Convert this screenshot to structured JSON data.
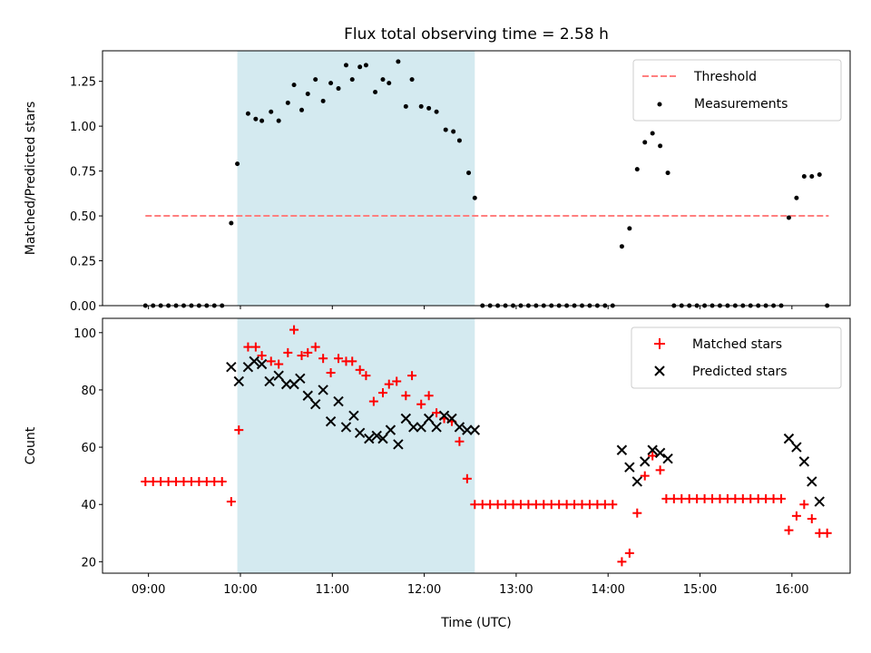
{
  "chart_data": {
    "type": "scatter",
    "title": "Flux total observing time = 2.58 h",
    "xlabel": "Time (UTC)",
    "x_ticks": [
      "09:00",
      "10:00",
      "11:00",
      "12:00",
      "13:00",
      "14:00",
      "15:00",
      "16:00"
    ],
    "colors": {
      "span": "#d4eaf0",
      "threshold": "#ff7f7f",
      "measurements": "#000000",
      "matched": "#ff0000",
      "predicted": "#000000"
    },
    "panels": [
      {
        "ylabel": "Matched/Predicted stars",
        "ylim": [
          0,
          1.42
        ],
        "y_ticks": [
          "0.00",
          "0.25",
          "0.50",
          "0.75",
          "1.00",
          "1.25"
        ],
        "legend": {
          "placement": "top-right",
          "entries": [
            "Threshold",
            "Measurements"
          ]
        },
        "shaded_span": [
          "09:58",
          "12:33"
        ],
        "threshold": {
          "name": "Threshold",
          "y": 0.5,
          "x_range": [
            "08:58",
            "16:24"
          ]
        },
        "series": [
          {
            "name": "Measurements",
            "marker": "dot",
            "points": [
              [
                "08:58",
                0
              ],
              [
                "09:03",
                0
              ],
              [
                "09:08",
                0
              ],
              [
                "09:13",
                0
              ],
              [
                "09:18",
                0
              ],
              [
                "09:23",
                0
              ],
              [
                "09:28",
                0
              ],
              [
                "09:33",
                0
              ],
              [
                "09:38",
                0
              ],
              [
                "09:43",
                0
              ],
              [
                "09:48",
                0
              ],
              [
                "09:54",
                0.46
              ],
              [
                "09:58",
                0.79
              ],
              [
                "10:05",
                1.07
              ],
              [
                "10:10",
                1.04
              ],
              [
                "10:14",
                1.03
              ],
              [
                "10:20",
                1.08
              ],
              [
                "10:25",
                1.03
              ],
              [
                "10:31",
                1.13
              ],
              [
                "10:35",
                1.23
              ],
              [
                "10:40",
                1.09
              ],
              [
                "10:44",
                1.18
              ],
              [
                "10:49",
                1.26
              ],
              [
                "10:54",
                1.14
              ],
              [
                "10:59",
                1.24
              ],
              [
                "11:04",
                1.21
              ],
              [
                "11:09",
                1.34
              ],
              [
                "11:13",
                1.26
              ],
              [
                "11:18",
                1.33
              ],
              [
                "11:22",
                1.34
              ],
              [
                "11:28",
                1.19
              ],
              [
                "11:33",
                1.26
              ],
              [
                "11:37",
                1.24
              ],
              [
                "11:43",
                1.36
              ],
              [
                "11:48",
                1.11
              ],
              [
                "11:52",
                1.26
              ],
              [
                "11:58",
                1.11
              ],
              [
                "12:03",
                1.1
              ],
              [
                "12:08",
                1.08
              ],
              [
                "12:14",
                0.98
              ],
              [
                "12:19",
                0.97
              ],
              [
                "12:23",
                0.92
              ],
              [
                "12:29",
                0.74
              ],
              [
                "12:33",
                0.6
              ],
              [
                "12:38",
                0
              ],
              [
                "12:43",
                0
              ],
              [
                "12:48",
                0
              ],
              [
                "12:53",
                0
              ],
              [
                "12:58",
                0
              ],
              [
                "13:03",
                0
              ],
              [
                "13:08",
                0
              ],
              [
                "13:13",
                0
              ],
              [
                "13:18",
                0
              ],
              [
                "13:23",
                0
              ],
              [
                "13:28",
                0
              ],
              [
                "13:33",
                0
              ],
              [
                "13:38",
                0
              ],
              [
                "13:43",
                0
              ],
              [
                "13:48",
                0
              ],
              [
                "13:53",
                0
              ],
              [
                "13:58",
                0
              ],
              [
                "14:03",
                0
              ],
              [
                "14:09",
                0.33
              ],
              [
                "14:14",
                0.43
              ],
              [
                "14:19",
                0.76
              ],
              [
                "14:24",
                0.91
              ],
              [
                "14:29",
                0.96
              ],
              [
                "14:34",
                0.89
              ],
              [
                "14:39",
                0.74
              ],
              [
                "14:43",
                0
              ],
              [
                "14:48",
                0
              ],
              [
                "14:53",
                0
              ],
              [
                "14:58",
                0
              ],
              [
                "15:03",
                0
              ],
              [
                "15:08",
                0
              ],
              [
                "15:13",
                0
              ],
              [
                "15:18",
                0
              ],
              [
                "15:23",
                0
              ],
              [
                "15:28",
                0
              ],
              [
                "15:33",
                0
              ],
              [
                "15:38",
                0
              ],
              [
                "15:43",
                0
              ],
              [
                "15:48",
                0
              ],
              [
                "15:53",
                0
              ],
              [
                "15:58",
                0.49
              ],
              [
                "16:03",
                0.6
              ],
              [
                "16:08",
                0.72
              ],
              [
                "16:13",
                0.72
              ],
              [
                "16:18",
                0.73
              ],
              [
                "16:23",
                0
              ]
            ]
          }
        ]
      },
      {
        "ylabel": "Count",
        "ylim": [
          16,
          105
        ],
        "y_ticks": [
          "20",
          "40",
          "60",
          "80",
          "100"
        ],
        "legend": {
          "placement": "top-right",
          "entries": [
            "Matched stars",
            "Predicted stars"
          ]
        },
        "shaded_span": [
          "09:58",
          "12:33"
        ],
        "series": [
          {
            "name": "Matched stars",
            "marker": "plus",
            "points": [
              [
                "08:58",
                48
              ],
              [
                "09:03",
                48
              ],
              [
                "09:08",
                48
              ],
              [
                "09:13",
                48
              ],
              [
                "09:18",
                48
              ],
              [
                "09:23",
                48
              ],
              [
                "09:28",
                48
              ],
              [
                "09:33",
                48
              ],
              [
                "09:38",
                48
              ],
              [
                "09:43",
                48
              ],
              [
                "09:48",
                48
              ],
              [
                "09:54",
                41
              ],
              [
                "09:59",
                66
              ],
              [
                "10:05",
                95
              ],
              [
                "10:10",
                95
              ],
              [
                "10:14",
                92
              ],
              [
                "10:20",
                90
              ],
              [
                "10:25",
                89
              ],
              [
                "10:31",
                93
              ],
              [
                "10:35",
                101
              ],
              [
                "10:40",
                92
              ],
              [
                "10:44",
                93
              ],
              [
                "10:49",
                95
              ],
              [
                "10:54",
                91
              ],
              [
                "10:59",
                86
              ],
              [
                "11:04",
                91
              ],
              [
                "11:09",
                90
              ],
              [
                "11:13",
                90
              ],
              [
                "11:18",
                87
              ],
              [
                "11:22",
                85
              ],
              [
                "11:27",
                76
              ],
              [
                "11:33",
                79
              ],
              [
                "11:37",
                82
              ],
              [
                "11:42",
                83
              ],
              [
                "11:48",
                78
              ],
              [
                "11:52",
                85
              ],
              [
                "11:58",
                75
              ],
              [
                "12:03",
                78
              ],
              [
                "12:08",
                72
              ],
              [
                "12:13",
                70
              ],
              [
                "12:18",
                69
              ],
              [
                "12:23",
                62
              ],
              [
                "12:28",
                49
              ],
              [
                "12:33",
                40
              ],
              [
                "12:38",
                40
              ],
              [
                "12:43",
                40
              ],
              [
                "12:48",
                40
              ],
              [
                "12:53",
                40
              ],
              [
                "12:58",
                40
              ],
              [
                "13:03",
                40
              ],
              [
                "13:08",
                40
              ],
              [
                "13:13",
                40
              ],
              [
                "13:18",
                40
              ],
              [
                "13:23",
                40
              ],
              [
                "13:28",
                40
              ],
              [
                "13:33",
                40
              ],
              [
                "13:38",
                40
              ],
              [
                "13:43",
                40
              ],
              [
                "13:48",
                40
              ],
              [
                "13:53",
                40
              ],
              [
                "13:58",
                40
              ],
              [
                "14:03",
                40
              ],
              [
                "14:09",
                20
              ],
              [
                "14:14",
                23
              ],
              [
                "14:19",
                37
              ],
              [
                "14:24",
                50
              ],
              [
                "14:29",
                57
              ],
              [
                "14:34",
                52
              ],
              [
                "14:38",
                42
              ],
              [
                "14:43",
                42
              ],
              [
                "14:48",
                42
              ],
              [
                "14:53",
                42
              ],
              [
                "14:58",
                42
              ],
              [
                "15:03",
                42
              ],
              [
                "15:08",
                42
              ],
              [
                "15:13",
                42
              ],
              [
                "15:18",
                42
              ],
              [
                "15:23",
                42
              ],
              [
                "15:28",
                42
              ],
              [
                "15:33",
                42
              ],
              [
                "15:38",
                42
              ],
              [
                "15:43",
                42
              ],
              [
                "15:48",
                42
              ],
              [
                "15:53",
                42
              ],
              [
                "15:58",
                31
              ],
              [
                "16:03",
                36
              ],
              [
                "16:08",
                40
              ],
              [
                "16:13",
                35
              ],
              [
                "16:18",
                30
              ],
              [
                "16:23",
                30
              ]
            ]
          },
          {
            "name": "Predicted stars",
            "marker": "x",
            "points": [
              [
                "09:54",
                88
              ],
              [
                "09:59",
                83
              ],
              [
                "10:05",
                88
              ],
              [
                "10:09",
                90
              ],
              [
                "10:14",
                89
              ],
              [
                "10:19",
                83
              ],
              [
                "10:25",
                85
              ],
              [
                "10:30",
                82
              ],
              [
                "10:35",
                82
              ],
              [
                "10:39",
                84
              ],
              [
                "10:44",
                78
              ],
              [
                "10:49",
                75
              ],
              [
                "10:54",
                80
              ],
              [
                "10:59",
                69
              ],
              [
                "11:04",
                76
              ],
              [
                "11:09",
                67
              ],
              [
                "11:14",
                71
              ],
              [
                "11:18",
                65
              ],
              [
                "11:24",
                63
              ],
              [
                "11:29",
                64
              ],
              [
                "11:33",
                63
              ],
              [
                "11:38",
                66
              ],
              [
                "11:43",
                61
              ],
              [
                "11:48",
                70
              ],
              [
                "11:53",
                67
              ],
              [
                "11:58",
                67
              ],
              [
                "12:03",
                70
              ],
              [
                "12:08",
                67
              ],
              [
                "12:13",
                71
              ],
              [
                "12:18",
                70
              ],
              [
                "12:23",
                67
              ],
              [
                "12:28",
                66
              ],
              [
                "12:33",
                66
              ],
              [
                "14:09",
                59
              ],
              [
                "14:14",
                53
              ],
              [
                "14:19",
                48
              ],
              [
                "14:24",
                55
              ],
              [
                "14:29",
                59
              ],
              [
                "14:34",
                58
              ],
              [
                "14:39",
                56
              ],
              [
                "15:58",
                63
              ],
              [
                "16:03",
                60
              ],
              [
                "16:08",
                55
              ],
              [
                "16:13",
                48
              ],
              [
                "16:18",
                41
              ]
            ]
          }
        ]
      }
    ]
  }
}
